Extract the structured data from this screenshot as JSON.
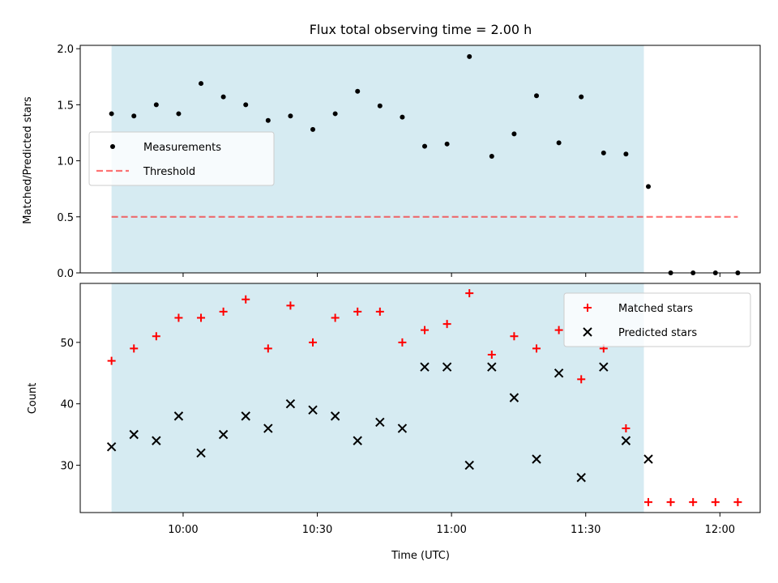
{
  "colors": {
    "observing_band": "#add8e6",
    "threshold": "#ff0000",
    "matched": "#ff0000",
    "predicted": "#000000",
    "measurement": "#000000"
  },
  "chart_data": [
    {
      "type": "scatter",
      "title": "Flux total observing time = 2.00 h",
      "xlabel": "",
      "ylabel": "Matched/Predicted stars",
      "ylim": [
        0,
        2.03
      ],
      "yticks": [
        "0.0",
        "0.5",
        "1.0",
        "1.5",
        "2.0"
      ],
      "xlim": [
        "09:37",
        "12:09"
      ],
      "legend_position": "center-left",
      "observing_band": {
        "start": "09:44",
        "end": "11:43"
      },
      "series": [
        {
          "name": "Measurements",
          "marker": "dot",
          "x": [
            "09:44",
            "09:49",
            "09:54",
            "09:59",
            "10:04",
            "10:09",
            "10:14",
            "10:19",
            "10:24",
            "10:29",
            "10:34",
            "10:39",
            "10:44",
            "10:49",
            "10:54",
            "10:59",
            "11:04",
            "11:09",
            "11:14",
            "11:19",
            "11:24",
            "11:29",
            "11:34",
            "11:39",
            "11:44",
            "11:49",
            "11:54",
            "11:59",
            "12:04"
          ],
          "y": [
            1.42,
            1.4,
            1.5,
            1.42,
            1.69,
            1.57,
            1.5,
            1.36,
            1.4,
            1.28,
            1.42,
            1.62,
            1.49,
            1.39,
            1.13,
            1.15,
            1.93,
            1.04,
            1.24,
            1.58,
            1.16,
            1.57,
            1.07,
            1.06,
            0.77,
            0,
            0,
            0,
            0
          ]
        },
        {
          "name": "Threshold",
          "style": "dashed-line",
          "x": [
            "09:44",
            "12:04"
          ],
          "y": [
            0.5,
            0.5
          ]
        }
      ]
    },
    {
      "type": "scatter",
      "xlabel": "Time (UTC)",
      "ylabel": "Count",
      "ylim": [
        22.3,
        59.6
      ],
      "yticks": [
        "30",
        "40",
        "50"
      ],
      "xlim": [
        "09:37",
        "12:09"
      ],
      "xticks": [
        "10:00",
        "10:30",
        "11:00",
        "11:30",
        "12:00"
      ],
      "legend_position": "top-right",
      "observing_band": {
        "start": "09:44",
        "end": "11:43"
      },
      "series": [
        {
          "name": "Matched stars",
          "marker": "plus",
          "x": [
            "09:44",
            "09:49",
            "09:54",
            "09:59",
            "10:04",
            "10:09",
            "10:14",
            "10:19",
            "10:24",
            "10:29",
            "10:34",
            "10:39",
            "10:44",
            "10:49",
            "10:54",
            "10:59",
            "11:04",
            "11:09",
            "11:14",
            "11:19",
            "11:24",
            "11:29",
            "11:34",
            "11:39",
            "11:44",
            "11:49",
            "11:54",
            "11:59",
            "12:04"
          ],
          "y": [
            47,
            49,
            51,
            54,
            54,
            55,
            57,
            49,
            56,
            50,
            54,
            55,
            55,
            50,
            52,
            53,
            58,
            48,
            51,
            49,
            52,
            44,
            49,
            36,
            24,
            24,
            24,
            24,
            24
          ]
        },
        {
          "name": "Predicted stars",
          "marker": "x",
          "x": [
            "09:44",
            "09:49",
            "09:54",
            "09:59",
            "10:04",
            "10:09",
            "10:14",
            "10:19",
            "10:24",
            "10:29",
            "10:34",
            "10:39",
            "10:44",
            "10:49",
            "10:54",
            "10:59",
            "11:04",
            "11:09",
            "11:14",
            "11:19",
            "11:24",
            "11:29",
            "11:34",
            "11:39",
            "11:44"
          ],
          "y": [
            33,
            35,
            34,
            38,
            32,
            35,
            38,
            36,
            40,
            39,
            38,
            34,
            37,
            36,
            46,
            46,
            30,
            46,
            41,
            31,
            45,
            28,
            46,
            34,
            31
          ]
        }
      ]
    }
  ]
}
